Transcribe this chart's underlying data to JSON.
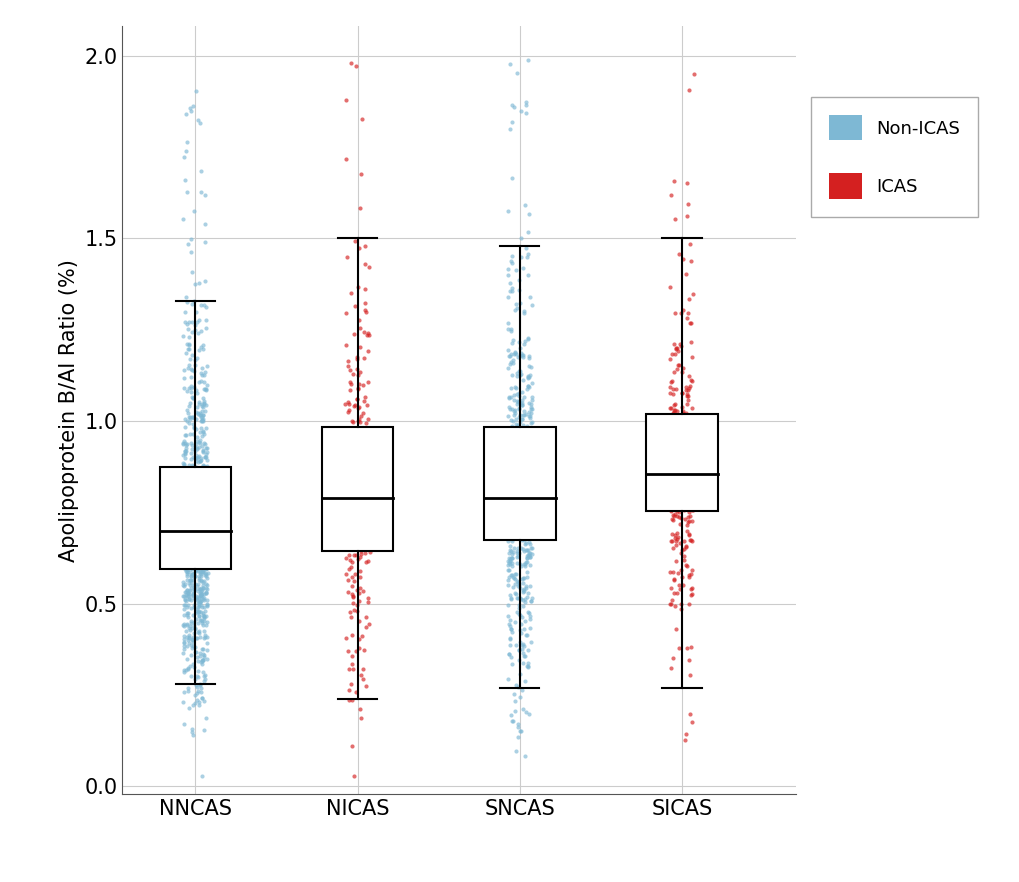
{
  "groups": [
    "NNCAS",
    "NICAS",
    "SNCAS",
    "SICAS"
  ],
  "dot_colors": [
    "#7eb8d4",
    "#d42020",
    "#7eb8d4",
    "#d42020"
  ],
  "n_points": [
    900,
    250,
    600,
    280
  ],
  "seeds": [
    42,
    43,
    44,
    45
  ],
  "medians": [
    0.7,
    0.79,
    0.79,
    0.855
  ],
  "q1": [
    0.595,
    0.645,
    0.675,
    0.755
  ],
  "q3": [
    0.875,
    0.985,
    0.985,
    1.02
  ],
  "whisker_low": [
    0.28,
    0.24,
    0.27,
    0.27
  ],
  "whisker_high": [
    1.33,
    1.5,
    1.48,
    1.5
  ],
  "ylim": [
    -0.02,
    2.08
  ],
  "yticks": [
    0.0,
    0.5,
    1.0,
    1.5,
    2.0
  ],
  "ylabel": "Apolipoprotein B/AI Ratio (%)",
  "background_color": "#ffffff",
  "grid_color": "#cccccc",
  "box_width": 0.22,
  "dot_alpha": 0.65,
  "dot_size": 9,
  "dot_jitter": 0.075,
  "legend_labels": [
    "Non-ICAS",
    "ICAS"
  ],
  "legend_colors": [
    "#7eb8d4",
    "#d42020"
  ],
  "tick_fontsize": 15,
  "label_fontsize": 15
}
